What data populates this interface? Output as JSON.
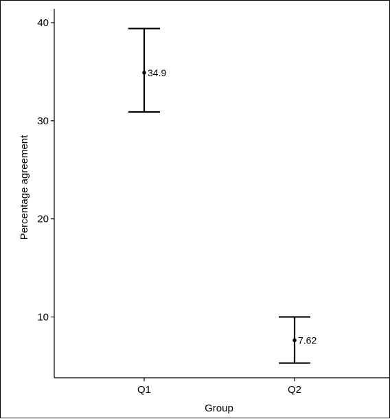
{
  "chart_data": {
    "type": "errorbar",
    "categories": [
      "Q1",
      "Q2"
    ],
    "series": [
      {
        "values": [
          34.9,
          7.62
        ],
        "lower": [
          30.9,
          5.3
        ],
        "upper": [
          39.4,
          10.0
        ],
        "labels": [
          "34.9",
          "7.62"
        ]
      }
    ],
    "xlabel": "Group",
    "ylabel": "Percentage agreement",
    "yticks": [
      10,
      20,
      30,
      40
    ],
    "ytick_labels": [
      "10",
      "20",
      "30",
      "40"
    ],
    "ylim": [
      3.8,
      41.4
    ],
    "grid": false,
    "legend": "none",
    "colors": {
      "mark": "#000000",
      "axis": "#000000",
      "background": "#ffffff"
    }
  }
}
